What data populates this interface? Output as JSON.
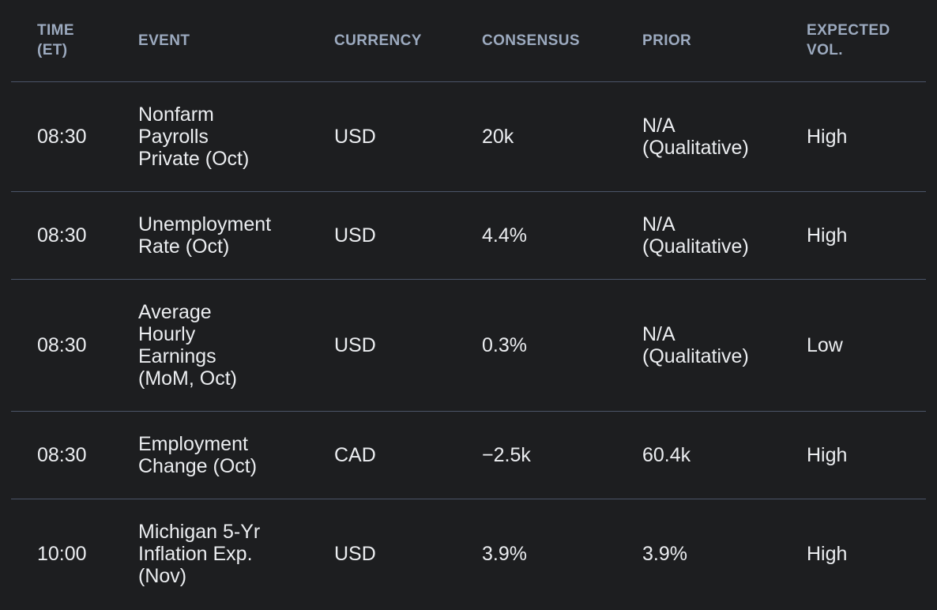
{
  "accent_colors": {
    "background": "#1d1e20",
    "divider": "#4b5468",
    "header_text": "#9caabf",
    "body_text": "#ebedf0"
  },
  "table": {
    "columns": [
      {
        "key": "time",
        "label": "TIME\n(ET)"
      },
      {
        "key": "event",
        "label": "EVENT"
      },
      {
        "key": "currency",
        "label": "CURRENCY"
      },
      {
        "key": "consensus",
        "label": "CONSENSUS"
      },
      {
        "key": "prior",
        "label": "PRIOR"
      },
      {
        "key": "vol",
        "label": "EXPECTED\nVOL."
      }
    ],
    "rows": [
      {
        "time": "08:30",
        "event": "Nonfarm\nPayrolls\nPrivate (Oct)",
        "currency": "USD",
        "consensus": "20k",
        "prior": "N/A\n(Qualitative)",
        "vol": "High"
      },
      {
        "time": "08:30",
        "event": "Unemployment\nRate (Oct)",
        "currency": "USD",
        "consensus": "4.4%",
        "prior": "N/A\n(Qualitative)",
        "vol": "High"
      },
      {
        "time": "08:30",
        "event": "Average\nHourly\nEarnings\n(MoM, Oct)",
        "currency": "USD",
        "consensus": "0.3%",
        "prior": "N/A\n(Qualitative)",
        "vol": "Low"
      },
      {
        "time": "08:30",
        "event": "Employment\nChange (Oct)",
        "currency": "CAD",
        "consensus": "−2.5k",
        "prior": "60.4k",
        "vol": "High"
      },
      {
        "time": "10:00",
        "event": "Michigan 5-Yr\nInflation Exp.\n(Nov)",
        "currency": "USD",
        "consensus": "3.9%",
        "prior": "3.9%",
        "vol": "High"
      }
    ]
  }
}
